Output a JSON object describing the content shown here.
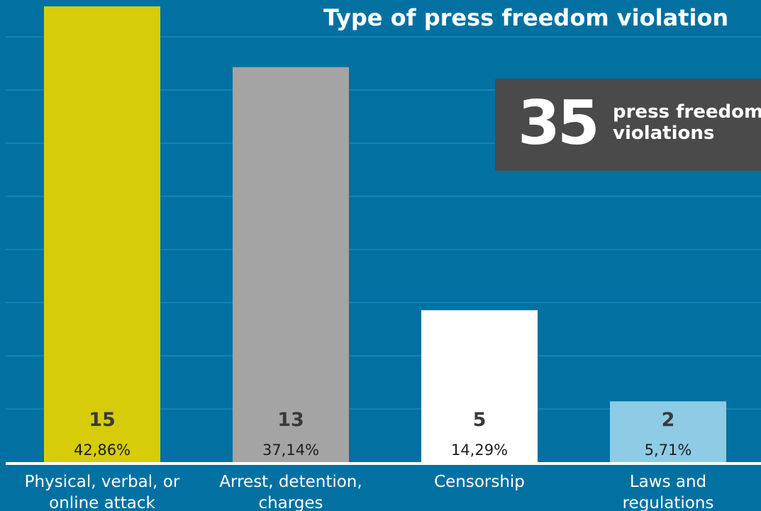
{
  "chart_data": {
    "type": "bar",
    "title": "Type of press freedom violation",
    "categories": [
      "Physical, verbal, or online attack",
      "Arrest, detention, charges",
      "Censorship",
      "Laws and regulations"
    ],
    "values": [
      15,
      13,
      5,
      2
    ],
    "percent_labels": [
      "42,86%",
      "37,14%",
      "14,29%",
      "5,71%"
    ],
    "colors": [
      "#d6cc0a",
      "#a4a4a4",
      "#ffffff",
      "#8ecbe5"
    ],
    "ylim": [
      0,
      15
    ],
    "grid": true,
    "xlabel": "",
    "ylabel": ""
  },
  "summary": {
    "number": "35",
    "label": "press freedom violations"
  },
  "colors": {
    "background": "#0271a2",
    "gridline": "#2a8ab4",
    "baseline": "#ffffff",
    "summary_box": "#4a4a4a",
    "value_text": "#3a3a3a",
    "label_text": "#ffffff"
  }
}
